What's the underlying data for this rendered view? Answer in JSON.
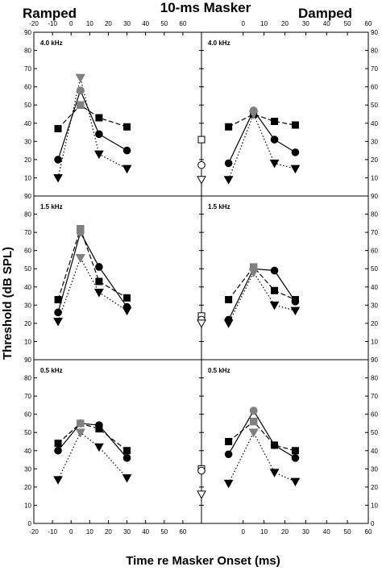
{
  "title": "10-ms Masker",
  "left_title": "Ramped",
  "right_title": "Damped",
  "xlabel": "Time re Masker Onset (ms)",
  "ylabel": "Threshold (dB SPL)",
  "chart_data": [
    {
      "type": "line",
      "title": "4.0 kHz",
      "xlim": [
        -20,
        70
      ],
      "ylim": [
        0,
        90
      ],
      "series": [
        {
          "marker": "square",
          "color": "#000000",
          "style": "dashed",
          "x": [
            -7,
            5,
            15,
            30
          ],
          "y": [
            37,
            50,
            43,
            38
          ]
        },
        {
          "marker": "circle",
          "color": "#000000",
          "style": "solid",
          "x": [
            -7,
            5,
            15,
            30
          ],
          "y": [
            20,
            58,
            34,
            25
          ]
        },
        {
          "marker": "triangle-down",
          "color": "#000000",
          "style": "dotted",
          "x": [
            -7,
            5,
            15,
            30
          ],
          "y": [
            10,
            65,
            23,
            15
          ]
        },
        {
          "marker": "square",
          "color": "#808080",
          "style": "none",
          "x": [
            5
          ],
          "y": [
            50
          ]
        },
        {
          "marker": "circle",
          "color": "#808080",
          "style": "none",
          "x": [
            5
          ],
          "y": [
            58
          ]
        },
        {
          "marker": "triangle-down",
          "color": "#808080",
          "style": "none",
          "x": [
            5
          ],
          "y": [
            65
          ]
        }
      ]
    },
    {
      "type": "line",
      "title": "4.0 kHz",
      "xlim": [
        -20,
        60
      ],
      "ylim": [
        0,
        90
      ],
      "series": [
        {
          "marker": "square",
          "color": "#000000",
          "style": "dashed",
          "x": [
            -7,
            5,
            15,
            25
          ],
          "y": [
            38,
            45,
            41,
            39
          ]
        },
        {
          "marker": "circle",
          "color": "#000000",
          "style": "solid",
          "x": [
            -7,
            5,
            15,
            25
          ],
          "y": [
            18,
            47,
            31,
            24
          ]
        },
        {
          "marker": "triangle-down",
          "color": "#000000",
          "style": "dotted",
          "x": [
            -7,
            5,
            15,
            25
          ],
          "y": [
            9,
            45,
            18,
            15
          ]
        },
        {
          "marker": "circle",
          "color": "#808080",
          "style": "none",
          "x": [
            5
          ],
          "y": [
            47
          ]
        },
        {
          "marker": "triangle-down",
          "color": "#808080",
          "style": "none",
          "x": [
            5
          ],
          "y": [
            45
          ]
        }
      ]
    },
    {
      "type": "line",
      "title": "1.5 kHz",
      "xlim": [
        -20,
        70
      ],
      "ylim": [
        0,
        90
      ],
      "series": [
        {
          "marker": "square",
          "color": "#000000",
          "style": "dashed",
          "x": [
            -7,
            5,
            15,
            30
          ],
          "y": [
            33,
            72,
            43,
            34
          ]
        },
        {
          "marker": "circle",
          "color": "#000000",
          "style": "solid",
          "x": [
            -7,
            5,
            15,
            30
          ],
          "y": [
            26,
            70,
            51,
            29
          ]
        },
        {
          "marker": "triangle-down",
          "color": "#000000",
          "style": "dotted",
          "x": [
            -7,
            5,
            15,
            30
          ],
          "y": [
            21,
            56,
            37,
            27
          ]
        },
        {
          "marker": "square",
          "color": "#808080",
          "style": "none",
          "x": [
            5
          ],
          "y": [
            72
          ]
        },
        {
          "marker": "circle",
          "color": "#808080",
          "style": "none",
          "x": [
            5
          ],
          "y": [
            70
          ]
        },
        {
          "marker": "triangle-down",
          "color": "#808080",
          "style": "none",
          "x": [
            5
          ],
          "y": [
            56
          ]
        }
      ]
    },
    {
      "type": "line",
      "title": "1.5 kHz",
      "xlim": [
        -20,
        60
      ],
      "ylim": [
        0,
        90
      ],
      "series": [
        {
          "marker": "square",
          "color": "#000000",
          "style": "dashed",
          "x": [
            -7,
            5,
            15,
            25
          ],
          "y": [
            33,
            51,
            38,
            33
          ]
        },
        {
          "marker": "circle",
          "color": "#000000",
          "style": "solid",
          "x": [
            -7,
            5,
            15,
            25
          ],
          "y": [
            22,
            50,
            49,
            32
          ]
        },
        {
          "marker": "triangle-down",
          "color": "#000000",
          "style": "dotted",
          "x": [
            -7,
            5,
            15,
            25
          ],
          "y": [
            20,
            48,
            30,
            27
          ]
        },
        {
          "marker": "square",
          "color": "#808080",
          "style": "none",
          "x": [
            5
          ],
          "y": [
            51
          ]
        },
        {
          "marker": "circle",
          "color": "#808080",
          "style": "none",
          "x": [
            5
          ],
          "y": [
            50
          ]
        },
        {
          "marker": "triangle-down",
          "color": "#808080",
          "style": "none",
          "x": [
            5
          ],
          "y": [
            48
          ]
        }
      ]
    },
    {
      "type": "line",
      "title": "0.5 kHz",
      "xlim": [
        -20,
        70
      ],
      "ylim": [
        0,
        90
      ],
      "series": [
        {
          "marker": "square",
          "color": "#000000",
          "style": "dashed",
          "x": [
            -7,
            5,
            15,
            30
          ],
          "y": [
            44,
            55,
            52,
            40
          ]
        },
        {
          "marker": "circle",
          "color": "#000000",
          "style": "solid",
          "x": [
            -7,
            5,
            15,
            30
          ],
          "y": [
            40,
            55,
            54,
            36
          ]
        },
        {
          "marker": "triangle-down",
          "color": "#000000",
          "style": "dotted",
          "x": [
            -7,
            5,
            15,
            30
          ],
          "y": [
            24,
            50,
            42,
            25
          ]
        },
        {
          "marker": "square",
          "color": "#808080",
          "style": "none",
          "x": [
            5
          ],
          "y": [
            55
          ]
        },
        {
          "marker": "circle",
          "color": "#808080",
          "style": "none",
          "x": [
            5
          ],
          "y": [
            55
          ]
        },
        {
          "marker": "triangle-down",
          "color": "#808080",
          "style": "none",
          "x": [
            5
          ],
          "y": [
            50
          ]
        }
      ]
    },
    {
      "type": "line",
      "title": "0.5 kHz",
      "xlim": [
        -20,
        60
      ],
      "ylim": [
        0,
        90
      ],
      "series": [
        {
          "marker": "square",
          "color": "#000000",
          "style": "dashed",
          "x": [
            -7,
            5,
            15,
            25
          ],
          "y": [
            45,
            56,
            43,
            40
          ]
        },
        {
          "marker": "circle",
          "color": "#000000",
          "style": "solid",
          "x": [
            -7,
            5,
            15,
            25
          ],
          "y": [
            38,
            62,
            43,
            36
          ]
        },
        {
          "marker": "triangle-down",
          "color": "#000000",
          "style": "dotted",
          "x": [
            -7,
            5,
            15,
            25
          ],
          "y": [
            22,
            50,
            28,
            23
          ]
        },
        {
          "marker": "square",
          "color": "#808080",
          "style": "none",
          "x": [
            5
          ],
          "y": [
            56
          ]
        },
        {
          "marker": "circle",
          "color": "#808080",
          "style": "none",
          "x": [
            5
          ],
          "y": [
            62
          ]
        },
        {
          "marker": "triangle-down",
          "color": "#808080",
          "style": "none",
          "x": [
            5
          ],
          "y": [
            50
          ]
        }
      ]
    }
  ],
  "quiet_thresholds": [
    {
      "rows": [
        {
          "marker": "square",
          "value": 31
        },
        {
          "marker": "circle",
          "value": 17
        },
        {
          "marker": "triangle-down",
          "value": 9
        }
      ]
    },
    {
      "rows": [
        {
          "marker": "square",
          "value": 24
        },
        {
          "marker": "circle",
          "value": 22
        },
        {
          "marker": "triangle-down",
          "value": 20
        }
      ]
    },
    {
      "rows": [
        {
          "marker": "square",
          "value": 30
        },
        {
          "marker": "circle",
          "value": 29
        },
        {
          "marker": "triangle-down",
          "value": 16
        }
      ]
    }
  ],
  "x_ticks_left": [
    "-20",
    "-10",
    "0",
    "10",
    "20",
    "30",
    "40",
    "50",
    "60"
  ],
  "x_ticks_right": [
    "0",
    "10",
    "20",
    "30",
    "40",
    "50",
    "60"
  ],
  "y_ticks": [
    "0",
    "10",
    "20",
    "30",
    "40",
    "50",
    "60",
    "70",
    "80",
    "90"
  ]
}
